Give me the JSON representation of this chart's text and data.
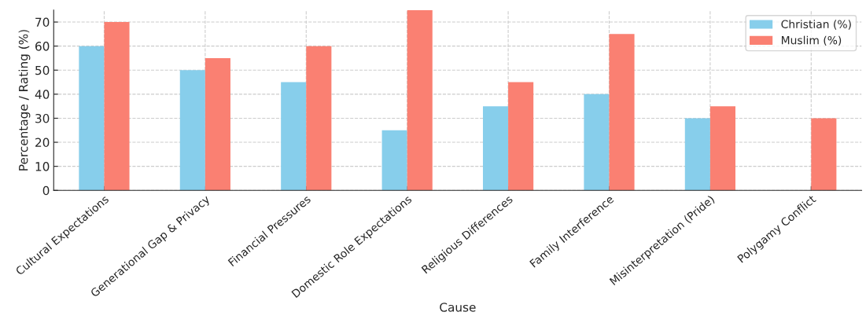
{
  "chart_data": {
    "type": "bar",
    "xlabel": "Cause",
    "ylabel": "Percentage / Rating (%)",
    "categories": [
      "Cultural Expectations",
      "Generational Gap & Privacy",
      "Financial Pressures",
      "Domestic Role Expectations",
      "Religious Differences",
      "Family Interference",
      "Misinterpretation (Pride)",
      "Polygamy Conflict"
    ],
    "series": [
      {
        "name": "Christian (%)",
        "color": "#87ceeb",
        "values": [
          60,
          50,
          45,
          25,
          35,
          40,
          30,
          null
        ]
      },
      {
        "name": "Muslim (%)",
        "color": "#fa8072",
        "values": [
          70,
          55,
          60,
          75,
          45,
          65,
          35,
          30
        ]
      }
    ],
    "ylim": [
      0,
      75
    ],
    "yticks": [
      0,
      10,
      20,
      30,
      40,
      50,
      60,
      70
    ],
    "grid": true,
    "legend": "top right"
  }
}
